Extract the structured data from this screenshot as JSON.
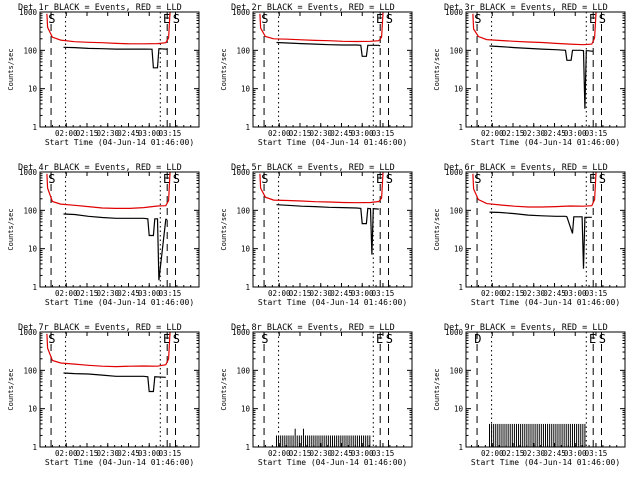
{
  "figure": {
    "background": "#ffffff",
    "event_color": "#000000",
    "lld_color": "#e00000"
  },
  "chart_data": [
    {
      "type": "line",
      "title": "Det 1r BLACK = Events, RED = LLD",
      "xlabel": "Start Time (04-Jun-14 01:46:00)",
      "ylabel": "Counts/sec",
      "x_ticks": [
        "02:00",
        "02:15",
        "02:30",
        "02:45",
        "03:00",
        "03:15"
      ],
      "y_ticks": [
        "1",
        "10",
        "100",
        "1000"
      ],
      "xlim_min": [
        -5,
        110
      ],
      "ylim": [
        1,
        1000
      ],
      "y_scale": "log",
      "vlines_dashed_min": [
        3,
        87,
        93
      ],
      "vlines_dotted_min": [
        13.5,
        82
      ],
      "markers": [
        {
          "text": "S",
          "x": 1
        },
        {
          "text": "E",
          "x": 84
        },
        {
          "text": "S",
          "x": 91
        }
      ],
      "series": [
        {
          "name": "Events",
          "color": "#000000",
          "x": [
            12,
            20,
            30,
            40,
            50,
            60,
            70,
            76,
            77,
            80,
            81,
            86,
            87
          ],
          "y": [
            120,
            118,
            112,
            110,
            108,
            108,
            108,
            107,
            35,
            35,
            110,
            108,
            106
          ]
        },
        {
          "name": "LLD",
          "color": "#e00000",
          "x": [
            0,
            0.5,
            4,
            10,
            20,
            30,
            40,
            50,
            60,
            70,
            80,
            86,
            88,
            89
          ],
          "y": [
            900,
            400,
            220,
            185,
            168,
            162,
            158,
            152,
            148,
            148,
            150,
            158,
            210,
            950
          ]
        }
      ]
    },
    {
      "type": "line",
      "title": "Det 2r BLACK = Events, RED = LLD",
      "xlabel": "Start Time (04-Jun-14 01:46:00)",
      "ylabel": "Counts/sec",
      "x_ticks": [
        "02:00",
        "02:15",
        "02:30",
        "02:45",
        "03:00",
        "03:15"
      ],
      "y_ticks": [
        "1",
        "10",
        "100",
        "1000"
      ],
      "xlim_min": [
        -5,
        110
      ],
      "ylim": [
        1,
        1000
      ],
      "y_scale": "log",
      "vlines_dashed_min": [
        3,
        87,
        93
      ],
      "vlines_dotted_min": [
        13.5,
        82
      ],
      "markers": [
        {
          "text": "S",
          "x": 1
        },
        {
          "text": "E",
          "x": 84
        },
        {
          "text": "S",
          "x": 91
        }
      ],
      "series": [
        {
          "name": "Events",
          "color": "#000000",
          "x": [
            12,
            20,
            30,
            40,
            50,
            60,
            70,
            73,
            74,
            77,
            78,
            86,
            87
          ],
          "y": [
            160,
            155,
            150,
            145,
            140,
            138,
            138,
            135,
            70,
            70,
            135,
            135,
            130
          ]
        },
        {
          "name": "LLD",
          "color": "#e00000",
          "x": [
            0,
            0.5,
            4,
            10,
            20,
            30,
            40,
            50,
            60,
            70,
            80,
            86,
            88,
            89
          ],
          "y": [
            900,
            380,
            230,
            200,
            195,
            188,
            182,
            178,
            172,
            170,
            172,
            178,
            220,
            950
          ]
        }
      ]
    },
    {
      "type": "line",
      "title": "Det 3r BLACK = Events, RED = LLD",
      "xlabel": "Start Time (04-Jun-14 01:46:00)",
      "ylabel": "Counts/sec",
      "x_ticks": [
        "02:00",
        "02:15",
        "02:30",
        "02:45",
        "03:00",
        "03:15"
      ],
      "y_ticks": [
        "1",
        "10",
        "100",
        "1000"
      ],
      "xlim_min": [
        -5,
        110
      ],
      "ylim": [
        1,
        1000
      ],
      "y_scale": "log",
      "vlines_dashed_min": [
        3,
        87,
        93
      ],
      "vlines_dotted_min": [
        13.5,
        82
      ],
      "markers": [
        {
          "text": "S",
          "x": 1
        },
        {
          "text": "E",
          "x": 84
        },
        {
          "text": "S",
          "x": 91
        }
      ],
      "series": [
        {
          "name": "Events",
          "color": "#000000",
          "x": [
            12,
            20,
            30,
            40,
            50,
            60,
            67,
            68,
            71,
            72,
            78,
            80,
            81,
            82,
            83,
            86,
            87
          ],
          "y": [
            130,
            125,
            118,
            112,
            108,
            104,
            100,
            55,
            55,
            100,
            100,
            98,
            3,
            98,
            98,
            95,
            95
          ]
        },
        {
          "name": "LLD",
          "color": "#e00000",
          "x": [
            0,
            0.5,
            4,
            10,
            20,
            30,
            40,
            50,
            60,
            70,
            80,
            86,
            88,
            89
          ],
          "y": [
            900,
            360,
            230,
            190,
            180,
            172,
            165,
            160,
            152,
            145,
            140,
            145,
            210,
            950
          ]
        }
      ]
    },
    {
      "type": "line",
      "title": "Det 4r BLACK = Events, RED = LLD",
      "xlabel": "Start Time (04-Jun-14 01:46:00)",
      "ylabel": "Counts/sec",
      "x_ticks": [
        "02:00",
        "02:15",
        "02:30",
        "02:45",
        "03:00",
        "03:15"
      ],
      "y_ticks": [
        "1",
        "10",
        "100",
        "1000"
      ],
      "xlim_min": [
        -5,
        110
      ],
      "ylim": [
        1,
        1000
      ],
      "y_scale": "log",
      "vlines_dashed_min": [
        3,
        87,
        93
      ],
      "vlines_dotted_min": [
        13.5,
        82
      ],
      "markers": [
        {
          "text": "S",
          "x": 1
        },
        {
          "text": "E",
          "x": 84
        },
        {
          "text": "S",
          "x": 91
        }
      ],
      "series": [
        {
          "name": "Events",
          "color": "#000000",
          "x": [
            12,
            20,
            30,
            40,
            50,
            60,
            70,
            73,
            74,
            77,
            78,
            80,
            81,
            86,
            87
          ],
          "y": [
            80,
            78,
            70,
            65,
            62,
            62,
            62,
            60,
            22,
            22,
            60,
            60,
            1.5,
            58,
            58
          ]
        },
        {
          "name": "LLD",
          "color": "#e00000",
          "x": [
            0,
            0.5,
            4,
            10,
            20,
            30,
            40,
            50,
            60,
            70,
            80,
            86,
            88,
            89
          ],
          "y": [
            900,
            380,
            170,
            145,
            135,
            125,
            115,
            112,
            112,
            118,
            130,
            132,
            180,
            950
          ]
        }
      ]
    },
    {
      "type": "line",
      "title": "Det 5r BLACK = Events, RED = LLD",
      "xlabel": "Start Time (04-Jun-14 01:46:00)",
      "ylabel": "Counts/sec",
      "x_ticks": [
        "02:00",
        "02:15",
        "02:30",
        "02:45",
        "03:00",
        "03:15"
      ],
      "y_ticks": [
        "1",
        "10",
        "100",
        "1000"
      ],
      "xlim_min": [
        -5,
        110
      ],
      "ylim": [
        1,
        1000
      ],
      "y_scale": "log",
      "vlines_dashed_min": [
        3,
        87,
        93
      ],
      "vlines_dotted_min": [
        13.5,
        82
      ],
      "markers": [
        {
          "text": "S",
          "x": 1
        },
        {
          "text": "E",
          "x": 84
        },
        {
          "text": "S",
          "x": 91
        }
      ],
      "series": [
        {
          "name": "Events",
          "color": "#000000",
          "x": [
            12,
            20,
            30,
            40,
            50,
            60,
            70,
            73,
            74,
            77,
            78,
            80,
            81,
            82,
            86
          ],
          "y": [
            140,
            135,
            128,
            125,
            120,
            118,
            115,
            112,
            45,
            45,
            112,
            110,
            7,
            110,
            108
          ]
        },
        {
          "name": "LLD",
          "color": "#e00000",
          "x": [
            0,
            0.5,
            4,
            10,
            20,
            30,
            40,
            50,
            60,
            70,
            80,
            86,
            88,
            89
          ],
          "y": [
            900,
            380,
            220,
            185,
            180,
            175,
            168,
            165,
            160,
            158,
            160,
            170,
            210,
            950
          ]
        }
      ]
    },
    {
      "type": "line",
      "title": "Det 6r BLACK = Events, RED = LLD",
      "xlabel": "Start Time (04-Jun-14 01:46:00)",
      "ylabel": "Counts/sec",
      "x_ticks": [
        "02:00",
        "02:15",
        "02:30",
        "02:45",
        "03:00",
        "03:15"
      ],
      "y_ticks": [
        "1",
        "10",
        "100",
        "1000"
      ],
      "xlim_min": [
        -5,
        110
      ],
      "ylim": [
        1,
        1000
      ],
      "y_scale": "log",
      "vlines_dashed_min": [
        3,
        87,
        93
      ],
      "vlines_dotted_min": [
        13.5,
        82
      ],
      "markers": [
        {
          "text": "S",
          "x": 1
        },
        {
          "text": "E",
          "x": 84
        },
        {
          "text": "S",
          "x": 91
        }
      ],
      "series": [
        {
          "name": "Events",
          "color": "#000000",
          "x": [
            12,
            20,
            30,
            40,
            50,
            60,
            67,
            68,
            72,
            73,
            78,
            79,
            80,
            81,
            86
          ],
          "y": [
            90,
            88,
            82,
            75,
            72,
            70,
            70,
            68,
            25,
            68,
            68,
            68,
            3,
            66,
            66
          ]
        },
        {
          "name": "LLD",
          "color": "#e00000",
          "x": [
            0,
            0.5,
            4,
            10,
            20,
            30,
            40,
            50,
            60,
            70,
            80,
            86,
            88,
            89
          ],
          "y": [
            900,
            360,
            190,
            150,
            138,
            128,
            122,
            122,
            125,
            130,
            128,
            132,
            190,
            950
          ]
        }
      ]
    },
    {
      "type": "line",
      "title": "Det 7r BLACK = Events, RED = LLD",
      "xlabel": "Start Time (04-Jun-14 01:46:00)",
      "ylabel": "Counts/sec",
      "x_ticks": [
        "02:00",
        "02:15",
        "02:30",
        "02:45",
        "03:00",
        "03:15"
      ],
      "y_ticks": [
        "1",
        "10",
        "100",
        "1000"
      ],
      "xlim_min": [
        -5,
        110
      ],
      "ylim": [
        1,
        1000
      ],
      "y_scale": "log",
      "vlines_dashed_min": [
        3,
        87,
        93
      ],
      "vlines_dotted_min": [
        13.5,
        82
      ],
      "markers": [
        {
          "text": "S",
          "x": 1
        },
        {
          "text": "E",
          "x": 84
        },
        {
          "text": "S",
          "x": 91
        }
      ],
      "series": [
        {
          "name": "Events",
          "color": "#000000",
          "x": [
            12,
            20,
            30,
            40,
            50,
            60,
            70,
            73,
            74,
            77,
            78,
            86
          ],
          "y": [
            85,
            82,
            80,
            75,
            70,
            70,
            70,
            68,
            28,
            28,
            68,
            66
          ]
        },
        {
          "name": "LLD",
          "color": "#e00000",
          "x": [
            0,
            0.5,
            4,
            10,
            20,
            30,
            40,
            50,
            60,
            70,
            80,
            86,
            88,
            89
          ],
          "y": [
            900,
            380,
            180,
            155,
            145,
            135,
            128,
            125,
            128,
            130,
            128,
            140,
            200,
            950
          ]
        }
      ]
    },
    {
      "type": "bar",
      "title": "Det 8r BLACK = Events, RED = LLD",
      "xlabel": "Start Time (04-Jun-14 01:46:00)",
      "ylabel": "Counts/sec",
      "x_ticks": [
        "02:00",
        "02:15",
        "02:30",
        "02:45",
        "03:00",
        "03:15"
      ],
      "y_ticks": [
        "1",
        "10",
        "100",
        "1000"
      ],
      "xlim_min": [
        -5,
        110
      ],
      "ylim": [
        1,
        1000
      ],
      "y_scale": "log",
      "vlines_dashed_min": [
        3,
        87,
        93
      ],
      "vlines_dotted_min": [
        13.5,
        82
      ],
      "markers": [
        {
          "text": "S",
          "x": 1
        },
        {
          "text": "E",
          "x": 84
        },
        {
          "text": "S",
          "x": 91
        }
      ],
      "series": [
        {
          "name": "Events",
          "color": "#000000",
          "x": [
            12,
            13.5,
            15,
            16.5,
            18,
            19.5,
            21,
            22.5,
            24,
            25.5,
            27,
            28.5,
            30,
            31.5,
            33,
            34.5,
            36,
            37.5,
            39,
            40.5,
            42,
            43.5,
            45,
            46.5,
            48,
            49.5,
            51,
            52.5,
            54,
            55.5,
            57,
            58.5,
            60,
            61.5,
            63,
            64.5,
            66,
            67.5,
            69,
            70.5,
            72,
            73.5,
            75,
            76.5,
            78,
            79.5
          ],
          "y": [
            2,
            2,
            2,
            2,
            2,
            2,
            2,
            2,
            2,
            3,
            2,
            2,
            2,
            3,
            2,
            2,
            2,
            2,
            2,
            2,
            2,
            2,
            2,
            2,
            2,
            2,
            2,
            2,
            2,
            2,
            2,
            2,
            2,
            2,
            2,
            2,
            2,
            2,
            2,
            2,
            2,
            2,
            2,
            2,
            2,
            2
          ]
        }
      ]
    },
    {
      "type": "bar",
      "title": "Det 9r BLACK = Events, RED = LLD",
      "xlabel": "Start Time (04-Jun-14 01:46:00)",
      "ylabel": "Counts/sec",
      "x_ticks": [
        "02:00",
        "02:15",
        "02:30",
        "02:45",
        "03:00",
        "03:15"
      ],
      "y_ticks": [
        "1",
        "10",
        "100",
        "1000"
      ],
      "xlim_min": [
        -5,
        110
      ],
      "ylim": [
        1,
        1000
      ],
      "y_scale": "log",
      "vlines_dashed_min": [
        3,
        87,
        93
      ],
      "vlines_dotted_min": [
        13.5,
        82
      ],
      "markers": [
        {
          "text": "D",
          "x": 1
        },
        {
          "text": "E",
          "x": 84
        },
        {
          "text": "S",
          "x": 91
        }
      ],
      "series": [
        {
          "name": "Events",
          "color": "#000000",
          "x": [
            12,
            13.5,
            15,
            16.5,
            18,
            19.5,
            21,
            22.5,
            24,
            25.5,
            27,
            28.5,
            30,
            31.5,
            33,
            34.5,
            36,
            37.5,
            39,
            40.5,
            42,
            43.5,
            45,
            46.5,
            48,
            49.5,
            51,
            52.5,
            54,
            55.5,
            57,
            58.5,
            60,
            61.5,
            63,
            64.5,
            66,
            67.5,
            69,
            70.5,
            72,
            73.5,
            75,
            76.5,
            78,
            79.5,
            81
          ],
          "y": [
            4,
            4,
            4,
            4,
            4,
            4,
            4,
            4,
            4,
            4,
            4,
            4,
            4,
            4,
            4,
            4,
            4,
            4,
            4,
            4,
            4,
            4,
            4,
            4,
            4,
            4,
            4,
            4,
            4,
            4,
            4,
            4,
            4,
            4,
            4,
            4,
            4,
            4,
            4,
            4,
            4,
            4,
            4,
            4,
            4,
            4,
            4
          ]
        }
      ]
    }
  ]
}
